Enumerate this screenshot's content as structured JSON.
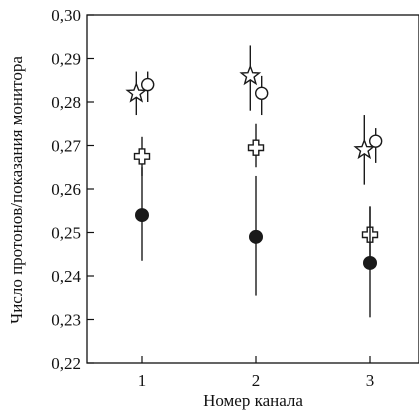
{
  "chart_data": {
    "type": "scatter",
    "title": "",
    "xlabel": "Номер канала",
    "ylabel": "Число протонов/показания монитора",
    "xlim": [
      0.5,
      3.5
    ],
    "ylim": [
      0.22,
      0.3
    ],
    "x_ticks": [
      "1",
      "2",
      "3"
    ],
    "y_ticks": [
      "0,22",
      "0,23",
      "0,24",
      "0,25",
      "0,26",
      "0,27",
      "0,28",
      "0,29",
      "0,30"
    ],
    "y_tick_values": [
      0.22,
      0.23,
      0.24,
      0.25,
      0.26,
      0.27,
      0.28,
      0.29,
      0.3
    ],
    "grid": false,
    "series": [
      {
        "marker": "star",
        "color": "#1a1a1a",
        "points": [
          {
            "x": 0.95,
            "y": 0.282,
            "err_low": 0.277,
            "err_high": 0.287
          },
          {
            "x": 1.95,
            "y": 0.286,
            "err_low": 0.278,
            "err_high": 0.293
          },
          {
            "x": 2.95,
            "y": 0.269,
            "err_low": 0.261,
            "err_high": 0.277
          }
        ]
      },
      {
        "marker": "open-circle",
        "color": "#1a1a1a",
        "points": [
          {
            "x": 1.05,
            "y": 0.284,
            "err_low": 0.28,
            "err_high": 0.287
          },
          {
            "x": 2.05,
            "y": 0.282,
            "err_low": 0.277,
            "err_high": 0.286
          },
          {
            "x": 3.05,
            "y": 0.271,
            "err_low": 0.266,
            "err_high": 0.274
          }
        ]
      },
      {
        "marker": "open-cross",
        "color": "#1a1a1a",
        "points": [
          {
            "x": 1.0,
            "y": 0.2675,
            "err_low": 0.263,
            "err_high": 0.272
          },
          {
            "x": 2.0,
            "y": 0.2695,
            "err_low": 0.265,
            "err_high": 0.275
          },
          {
            "x": 3.0,
            "y": 0.2495,
            "err_low": 0.244,
            "err_high": 0.256
          }
        ]
      },
      {
        "marker": "filled-circle",
        "color": "#1a1a1a",
        "points": [
          {
            "x": 1.0,
            "y": 0.254,
            "err_low": 0.2435,
            "err_high": 0.265
          },
          {
            "x": 2.0,
            "y": 0.249,
            "err_low": 0.2355,
            "err_high": 0.263
          },
          {
            "x": 3.0,
            "y": 0.243,
            "err_low": 0.2305,
            "err_high": 0.256
          }
        ]
      }
    ]
  }
}
